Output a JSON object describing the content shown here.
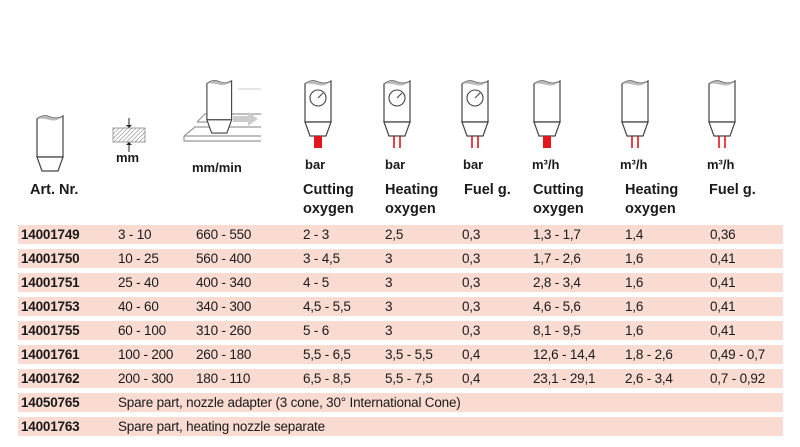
{
  "header": {
    "art_label": "Art. Nr.",
    "units": [
      "mm",
      "mm/min",
      "bar",
      "bar",
      "bar",
      "m³/h",
      "m³/h",
      "m³/h"
    ],
    "columns": [
      {
        "line1": "Cutting",
        "line2": "oxygen"
      },
      {
        "line1": "Heating",
        "line2": "oxygen"
      },
      {
        "line1": "Fuel g.",
        "line2": ""
      },
      {
        "line1": "Cutting",
        "line2": "oxygen"
      },
      {
        "line1": "Heating",
        "line2": "oxygen"
      },
      {
        "line1": "Fuel g.",
        "line2": ""
      }
    ]
  },
  "rows": [
    [
      "14001749",
      "3 - 10",
      "660 - 550",
      "2 - 3",
      "2,5",
      "0,3",
      "1,3 - 1,7",
      "1,4",
      "0,36"
    ],
    [
      "14001750",
      "10 - 25",
      "560 - 400",
      "3 - 4,5",
      "3",
      "0,3",
      "1,7 - 2,6",
      "1,6",
      "0,41"
    ],
    [
      "14001751",
      "25 - 40",
      "400 - 340",
      "4 - 5",
      "3",
      "0,3",
      "2,8 - 3,4",
      "1,6",
      "0,41"
    ],
    [
      "14001753",
      "40 - 60",
      "340 - 300",
      "4,5 - 5,5",
      "3",
      "0,3",
      "4,6 - 5,6",
      "1,6",
      "0,41"
    ],
    [
      "14001755",
      "60 - 100",
      "310 - 260",
      "5 - 6",
      "3",
      "0,3",
      "8,1 - 9,5",
      "1,6",
      "0,41"
    ],
    [
      "14001761",
      "100 - 200",
      "260 - 180",
      "5,5 - 6,5",
      "3,5 - 5,5",
      "0,4",
      "12,6 - 14,4",
      "1,8 - 2,6",
      "0,49 - 0,7"
    ],
    [
      "14001762",
      "200 - 300",
      "180 - 110",
      "6,5 - 8,5",
      "5,5 - 7,5",
      "0,4",
      "23,1 - 29,1",
      "2,6 - 3,4",
      "0,7 - 0,92"
    ]
  ],
  "spare_rows": [
    {
      "art": "14050765",
      "text": "Spare part, nozzle adapter (3 cone, 30° International Cone)"
    },
    {
      "art": "14001763",
      "text": "Spare part,  heating nozzle separate"
    }
  ],
  "colors": {
    "row_bg": "#f9dbd1",
    "accent": "#e3161b"
  }
}
